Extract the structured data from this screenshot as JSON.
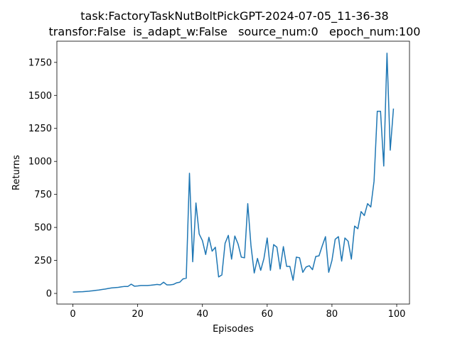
{
  "chart_data": {
    "type": "line",
    "title": "task:FactoryTaskNutBoltPickGPT-2024-07-05_11-36-38",
    "subtitle": "transfor:False  is_adapt_w:False   source_num:0   epoch_num:100",
    "x_label": "Episodes",
    "y_label": "Returns",
    "x": [
      0,
      1,
      2,
      3,
      4,
      5,
      6,
      7,
      8,
      9,
      10,
      11,
      12,
      13,
      14,
      15,
      16,
      17,
      18,
      19,
      20,
      21,
      22,
      23,
      24,
      25,
      26,
      27,
      28,
      29,
      30,
      31,
      32,
      33,
      34,
      35,
      36,
      37,
      38,
      39,
      40,
      41,
      42,
      43,
      44,
      45,
      46,
      47,
      48,
      49,
      50,
      51,
      52,
      53,
      54,
      55,
      56,
      57,
      58,
      59,
      60,
      61,
      62,
      63,
      64,
      65,
      66,
      67,
      68,
      69,
      70,
      71,
      72,
      73,
      74,
      75,
      76,
      77,
      78,
      79,
      80,
      81,
      82,
      83,
      84,
      85,
      86,
      87,
      88,
      89,
      90,
      91,
      92,
      93,
      94,
      95,
      96,
      97,
      98,
      99
    ],
    "values": [
      10,
      11,
      12,
      13,
      15,
      17,
      20,
      23,
      26,
      30,
      33,
      38,
      42,
      44,
      46,
      50,
      53,
      53,
      70,
      55,
      57,
      60,
      60,
      60,
      62,
      65,
      68,
      65,
      85,
      65,
      65,
      68,
      80,
      85,
      110,
      115,
      910,
      240,
      685,
      450,
      400,
      295,
      425,
      320,
      350,
      125,
      140,
      380,
      440,
      260,
      435,
      375,
      275,
      270,
      680,
      360,
      155,
      265,
      175,
      265,
      420,
      175,
      370,
      350,
      185,
      355,
      205,
      205,
      100,
      275,
      270,
      160,
      200,
      210,
      180,
      280,
      285,
      360,
      430,
      160,
      250,
      410,
      430,
      245,
      420,
      395,
      260,
      510,
      490,
      620,
      590,
      680,
      655,
      850,
      1380,
      1380,
      965,
      1820,
      1085,
      1400
    ],
    "color": "#1f77b4",
    "xlim": [
      -4.95,
      103.95
    ],
    "xticks": [
      0,
      20,
      40,
      60,
      80,
      100
    ],
    "ylim": [
      -80.5,
      1910.5
    ],
    "yticks": [
      0,
      250,
      500,
      750,
      1000,
      1250,
      1500,
      1750
    ]
  }
}
